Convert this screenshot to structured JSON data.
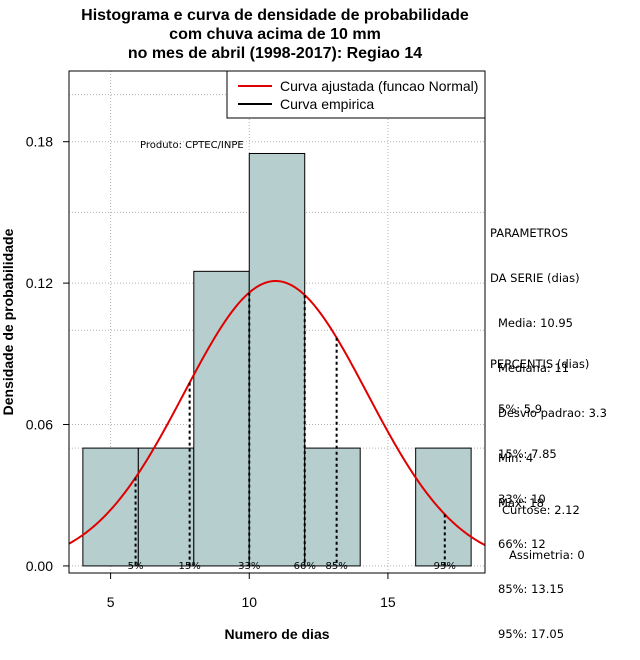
{
  "title_lines": [
    "Histograma e curva de densidade de probabilidade",
    "com chuva acima de 10 mm",
    "no mes de abril (1998-2017): Regiao 14"
  ],
  "watermark": "Produto: CPTEC/INPE",
  "legend": [
    {
      "label": "Curva ajustada (funcao Normal)",
      "color": "#e00000"
    },
    {
      "label": "Curva empirica",
      "color": "#000000"
    }
  ],
  "parametros": {
    "heading": [
      "PARAMETROS",
      "DA SERIE (dias)"
    ],
    "items": [
      "Media: 10.95",
      "Mediana: 11",
      "Desvio padrao: 3.3",
      "Min: 4",
      "Max: 18"
    ]
  },
  "percentis": {
    "heading": "PERCENTIS (dias)",
    "items": [
      "5%: 5.9",
      "15%: 7.85",
      "33%: 10",
      "66%: 12",
      "85%: 13.15",
      "95%: 17.05"
    ]
  },
  "stats": [
    "Curtose: 2.12",
    "Assimetria: 0"
  ],
  "chart_data": {
    "type": "histogram",
    "xlabel": "Numero de dias",
    "ylabel": "Densidade de probabilidade",
    "xlim": [
      3.5,
      18.5
    ],
    "ylim": [
      -0.003,
      0.21
    ],
    "xticks": [
      5,
      10,
      15
    ],
    "yticks": [
      0.0,
      0.06,
      0.12,
      0.18
    ],
    "ytick_labels": [
      "0.00",
      "0.06",
      "0.12",
      "0.18"
    ],
    "grid": true,
    "bins": [
      {
        "x0": 4,
        "x1": 6,
        "density": 0.05
      },
      {
        "x0": 6,
        "x1": 8,
        "density": 0.05
      },
      {
        "x0": 8,
        "x1": 10,
        "density": 0.125
      },
      {
        "x0": 10,
        "x1": 12,
        "density": 0.175
      },
      {
        "x0": 12,
        "x1": 14,
        "density": 0.05
      },
      {
        "x0": 14,
        "x1": 16,
        "density": 0.0
      },
      {
        "x0": 16,
        "x1": 18,
        "density": 0.05
      }
    ],
    "bar_color": "#b6cece",
    "normal_fit": {
      "mean": 10.95,
      "sd": 3.3,
      "color": "#e00000"
    },
    "percentiles": [
      {
        "label": "5%",
        "value": 5.9
      },
      {
        "label": "15%",
        "value": 7.85
      },
      {
        "label": "33%",
        "value": 10
      },
      {
        "label": "66%",
        "value": 12
      },
      {
        "label": "85%",
        "value": 13.15
      },
      {
        "label": "95%",
        "value": 17.05
      }
    ]
  }
}
